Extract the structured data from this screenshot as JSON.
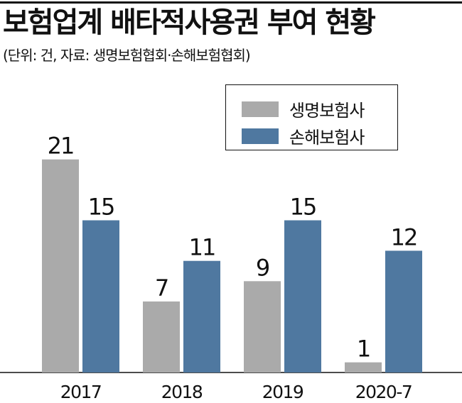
{
  "header": {
    "title": "보험업계 배타적사용권 부여 현황",
    "subtitle": "(단위: 건, 자료: 생명보험협회·손해보험협회)"
  },
  "colors": {
    "life": "#aaaaaa",
    "nonlife": "#4f78a0"
  },
  "chart_data": {
    "type": "bar",
    "title": "보험업계 배타적사용권 부여 현황",
    "subtitle": "(단위: 건, 자료: 생명보험협회·손해보험협회)",
    "categories": [
      "2017",
      "2018",
      "2019",
      "2020-7"
    ],
    "series": [
      {
        "name": "생명보험사",
        "values": [
          21,
          7,
          9,
          1
        ]
      },
      {
        "name": "손해보험사",
        "values": [
          15,
          11,
          15,
          12
        ]
      }
    ],
    "ylim": [
      0,
      21
    ],
    "grid": false,
    "legend": "top-right",
    "data_labels": true
  }
}
